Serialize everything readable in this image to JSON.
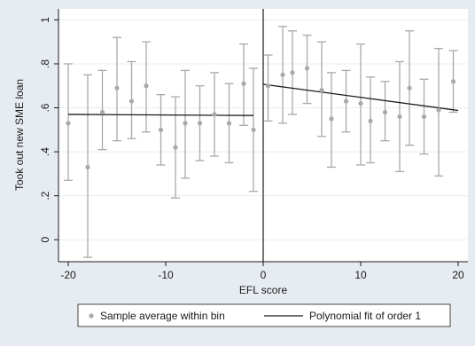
{
  "chart_data": {
    "type": "scatter",
    "xlabel": "EFL score",
    "ylabel": "Took out new SME loan",
    "xlim": [
      -21,
      21
    ],
    "ylim": [
      -0.1,
      1.05
    ],
    "x_ticks": [
      -20,
      -10,
      0,
      10,
      20
    ],
    "x_tick_labels": [
      "-20",
      "-10",
      "0",
      "10",
      "20"
    ],
    "y_ticks": [
      0,
      0.2,
      0.4,
      0.6,
      0.8,
      1
    ],
    "y_tick_labels": [
      "0",
      ".2",
      ".4",
      ".6",
      ".8",
      "1"
    ],
    "grid": true,
    "cutoff_x": 0,
    "legend": {
      "placement": "bottom",
      "items": [
        {
          "label": "Sample average within bin",
          "marker": "dot"
        },
        {
          "label": "Polynomial fit of order 1",
          "marker": "line"
        }
      ]
    },
    "colors": {
      "background": "#e6ecf1",
      "plot_background": "#ffffff",
      "points": "#a9a9a9",
      "error_bars": "#a9a9a9",
      "fit_line": "#1a1a1a",
      "grid": "#e8edf1",
      "cutoff_line": "#1a1a1a"
    },
    "series": [
      {
        "name": "Sample average within bin",
        "kind": "points_with_error_bars",
        "points": [
          {
            "x": -20,
            "y": 0.53,
            "low": 0.27,
            "high": 0.8
          },
          {
            "x": -18,
            "y": 0.33,
            "low": -0.08,
            "high": 0.75
          },
          {
            "x": -16.5,
            "y": 0.58,
            "low": 0.41,
            "high": 0.77
          },
          {
            "x": -15,
            "y": 0.69,
            "low": 0.45,
            "high": 0.92
          },
          {
            "x": -13.5,
            "y": 0.63,
            "low": 0.46,
            "high": 0.81
          },
          {
            "x": -12,
            "y": 0.7,
            "low": 0.49,
            "high": 0.9
          },
          {
            "x": -10.5,
            "y": 0.5,
            "low": 0.34,
            "high": 0.66
          },
          {
            "x": -9,
            "y": 0.42,
            "low": 0.19,
            "high": 0.65
          },
          {
            "x": -8,
            "y": 0.53,
            "low": 0.28,
            "high": 0.77
          },
          {
            "x": -6.5,
            "y": 0.53,
            "low": 0.36,
            "high": 0.7
          },
          {
            "x": -5,
            "y": 0.57,
            "low": 0.38,
            "high": 0.76
          },
          {
            "x": -3.5,
            "y": 0.53,
            "low": 0.35,
            "high": 0.71
          },
          {
            "x": -2,
            "y": 0.71,
            "low": 0.52,
            "high": 0.89
          },
          {
            "x": -1,
            "y": 0.5,
            "low": 0.22,
            "high": 0.78
          },
          {
            "x": 0.5,
            "y": 0.7,
            "low": 0.54,
            "high": 0.84
          },
          {
            "x": 2,
            "y": 0.75,
            "low": 0.53,
            "high": 0.97
          },
          {
            "x": 3,
            "y": 0.76,
            "low": 0.57,
            "high": 0.95
          },
          {
            "x": 4.5,
            "y": 0.78,
            "low": 0.62,
            "high": 0.93
          },
          {
            "x": 6,
            "y": 0.68,
            "low": 0.47,
            "high": 0.9
          },
          {
            "x": 7,
            "y": 0.55,
            "low": 0.33,
            "high": 0.76
          },
          {
            "x": 8.5,
            "y": 0.63,
            "low": 0.49,
            "high": 0.77
          },
          {
            "x": 10,
            "y": 0.62,
            "low": 0.34,
            "high": 0.89
          },
          {
            "x": 11,
            "y": 0.54,
            "low": 0.35,
            "high": 0.74
          },
          {
            "x": 12.5,
            "y": 0.58,
            "low": 0.45,
            "high": 0.72
          },
          {
            "x": 14,
            "y": 0.56,
            "low": 0.31,
            "high": 0.81
          },
          {
            "x": 15,
            "y": 0.69,
            "low": 0.43,
            "high": 0.95
          },
          {
            "x": 16.5,
            "y": 0.56,
            "low": 0.39,
            "high": 0.73
          },
          {
            "x": 18,
            "y": 0.59,
            "low": 0.29,
            "high": 0.87
          },
          {
            "x": 19.5,
            "y": 0.72,
            "low": 0.58,
            "high": 0.86
          }
        ]
      },
      {
        "name": "Polynomial fit of order 1",
        "kind": "fit_line",
        "segments": [
          {
            "x": [
              -20,
              -1
            ],
            "y": [
              0.57,
              0.565
            ]
          },
          {
            "x": [
              0,
              20
            ],
            "y": [
              0.707,
              0.588
            ]
          }
        ]
      }
    ]
  }
}
